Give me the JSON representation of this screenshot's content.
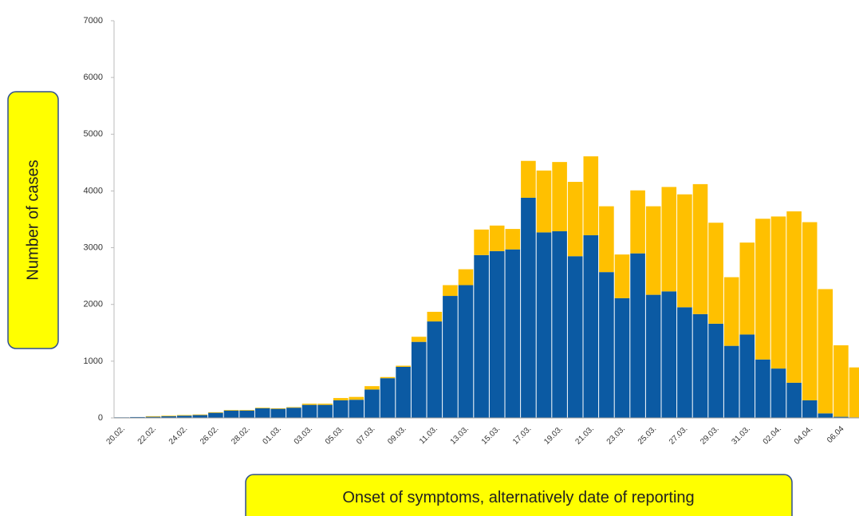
{
  "chart_data": {
    "type": "stacked_bar",
    "x_label": "Onset of symptoms, alternatively date of reporting",
    "y_label": "Number of cases",
    "categories": [
      "20.02.",
      null,
      "22.02.",
      null,
      "24.02.",
      null,
      "26.02.",
      null,
      "28.02.",
      null,
      "01.03.",
      null,
      "03.03.",
      null,
      "05.03.",
      null,
      "07.03.",
      null,
      "09.03.",
      null,
      "11.03.",
      null,
      "13.03.",
      null,
      "15.03.",
      null,
      "17.03.",
      null,
      "19.03.",
      null,
      "21.03.",
      null,
      "23.03.",
      null,
      "25.03.",
      null,
      "27.03.",
      null,
      "29.03.",
      null,
      "31.03.",
      null,
      "02.04.",
      null,
      "04.04.",
      null,
      "06.04",
      null
    ],
    "series": [
      {
        "color": "#0b5aa3",
        "values": [
          10,
          15,
          20,
          30,
          40,
          50,
          90,
          130,
          130,
          170,
          160,
          180,
          230,
          230,
          310,
          320,
          500,
          700,
          900,
          1340,
          1700,
          2150,
          2340,
          2870,
          2940,
          2970,
          3880,
          3270,
          3290,
          2850,
          3220,
          2570,
          2110,
          2900,
          2170,
          2230,
          1950,
          1830,
          1660,
          1270,
          1470,
          1030,
          870,
          620,
          310,
          80,
          20,
          10
        ]
      },
      {
        "color": "#ffc000",
        "values": [
          0,
          0,
          10,
          10,
          10,
          10,
          10,
          10,
          10,
          10,
          10,
          10,
          20,
          20,
          40,
          50,
          60,
          20,
          20,
          90,
          170,
          190,
          280,
          450,
          450,
          360,
          650,
          1090,
          1220,
          1310,
          1390,
          1160,
          770,
          1110,
          1560,
          1840,
          1990,
          2290,
          1780,
          1210,
          1620,
          2480,
          2680,
          3020,
          3140,
          2190,
          1260,
          880
        ]
      }
    ],
    "ylim": [
      0,
      7000
    ],
    "yticks": [
      0,
      1000,
      2000,
      3000,
      4000,
      5000,
      6000,
      7000
    ],
    "grid": false
  }
}
